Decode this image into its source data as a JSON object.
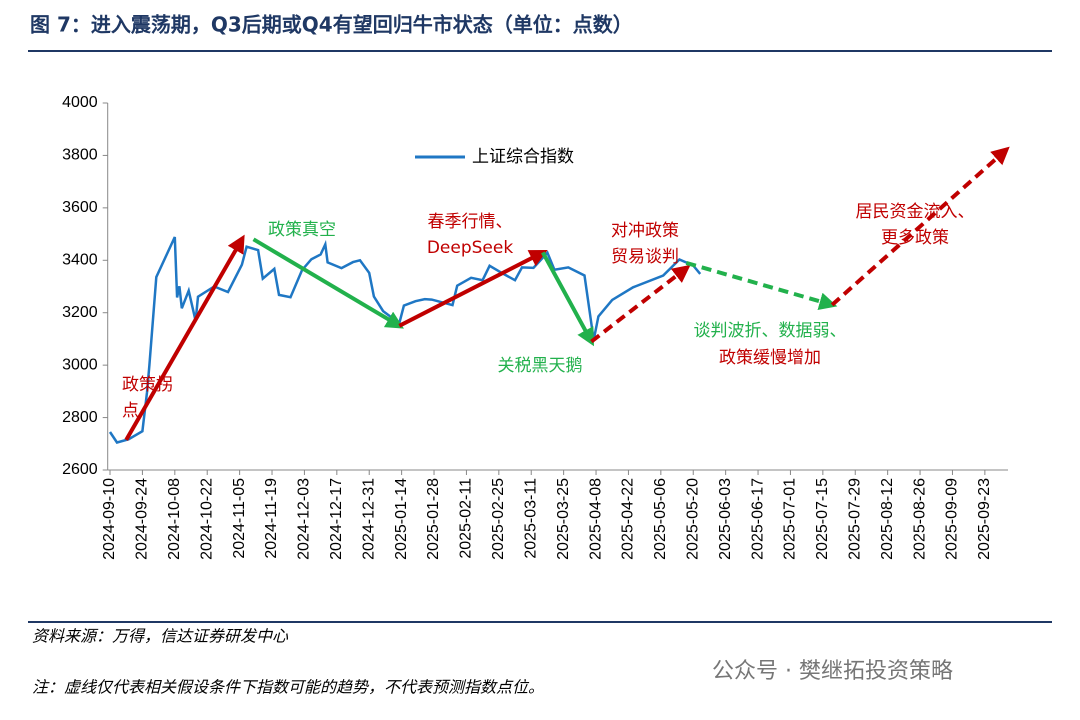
{
  "header": {
    "title": "图 7：进入震荡期，Q3后期或Q4有望回归牛市状态（单位：点数）"
  },
  "chart_data": {
    "type": "line",
    "series": [
      {
        "name": "上证综合指数",
        "color": "#1f77c4",
        "x": [
          "2024-09-10",
          "2024-09-13",
          "2024-09-18",
          "2024-09-24",
          "2024-09-26",
          "2024-09-27",
          "2024-09-30",
          "2024-10-08",
          "2024-10-09",
          "2024-10-10",
          "2024-10-11",
          "2024-10-14",
          "2024-10-17",
          "2024-10-18",
          "2024-10-25",
          "2024-10-31",
          "2024-11-06",
          "2024-11-08",
          "2024-11-13",
          "2024-11-15",
          "2024-11-20",
          "2024-11-22",
          "2024-11-27",
          "2024-12-02",
          "2024-12-06",
          "2024-12-10",
          "2024-12-12",
          "2024-12-13",
          "2024-12-19",
          "2024-12-24",
          "2024-12-27",
          "2024-12-31",
          "2025-01-02",
          "2025-01-06",
          "2025-01-13",
          "2025-01-15",
          "2025-01-20",
          "2025-01-24",
          "2025-01-27",
          "2025-02-05",
          "2025-02-07",
          "2025-02-13",
          "2025-02-18",
          "2025-02-21",
          "2025-02-27",
          "2025-03-04",
          "2025-03-07",
          "2025-03-12",
          "2025-03-18",
          "2025-03-21",
          "2025-03-27",
          "2025-04-03",
          "2025-04-07",
          "2025-04-09",
          "2025-04-15",
          "2025-04-24",
          "2025-05-07",
          "2025-05-14",
          "2025-05-20",
          "2025-05-23"
        ],
        "values": [
          2745,
          2705,
          2717,
          2748,
          2896,
          3000,
          3336,
          3489,
          3258,
          3301,
          3217,
          3284,
          3169,
          3261,
          3300,
          3279,
          3383,
          3452,
          3439,
          3330,
          3367,
          3268,
          3259,
          3363,
          3404,
          3422,
          3461,
          3392,
          3370,
          3393,
          3400,
          3352,
          3262,
          3206,
          3160,
          3227,
          3244,
          3252,
          3250,
          3229,
          3303,
          3333,
          3324,
          3379,
          3348,
          3324,
          3373,
          3371,
          3429,
          3364,
          3373,
          3342,
          3096,
          3186,
          3249,
          3297,
          3342,
          3403,
          3380,
          3348
        ]
      }
    ],
    "arrows": [
      {
        "x": [
          "2024-09-17",
          "2024-11-06"
        ],
        "y": [
          2715,
          3480
        ],
        "color": "#c00000",
        "dashed": false
      },
      {
        "x": [
          "2024-11-11",
          "2025-01-13"
        ],
        "y": [
          3480,
          3150
        ],
        "color": "#22b14c",
        "dashed": false
      },
      {
        "x": [
          "2025-01-13",
          "2025-03-16"
        ],
        "y": [
          3150,
          3430
        ],
        "color": "#c00000",
        "dashed": false
      },
      {
        "x": [
          "2025-03-16",
          "2025-04-06"
        ],
        "y": [
          3430,
          3090
        ],
        "color": "#22b14c",
        "dashed": false
      },
      {
        "x": [
          "2025-04-06",
          "2025-05-17"
        ],
        "y": [
          3090,
          3370
        ],
        "color": "#c00000",
        "dashed": true
      },
      {
        "x": [
          "2025-05-17",
          "2025-07-19"
        ],
        "y": [
          3390,
          3230
        ],
        "color": "#22b14c",
        "dashed": true
      },
      {
        "x": [
          "2025-07-19",
          "2025-10-02"
        ],
        "y": [
          3230,
          3820
        ],
        "color": "#c00000",
        "dashed": true
      }
    ],
    "annotations": [
      {
        "lines": [
          "政策拐",
          "点"
        ],
        "color": "#c00000"
      },
      {
        "lines": [
          "政策真空"
        ],
        "color": "#22b14c"
      },
      {
        "lines": [
          "春季行情、",
          "DeepSeek"
        ],
        "color": "#c00000"
      },
      {
        "lines": [
          "关税黑天鹅"
        ],
        "color": "#22b14c"
      },
      {
        "lines": [
          "对冲政策",
          "贸易谈判"
        ],
        "color": "#c00000"
      },
      {
        "lines": [
          "谈判波折、数据弱、"
        ],
        "color": "#22b14c"
      },
      {
        "lines": [
          "政策缓慢增加"
        ],
        "color": "#c00000"
      },
      {
        "lines": [
          "居民资金流入、",
          "更多政策"
        ],
        "color": "#c00000"
      }
    ],
    "xlim": [
      "2024-09-09",
      "2025-10-03"
    ],
    "xticks": [
      "2024-09-10",
      "2024-09-24",
      "2024-10-08",
      "2024-10-22",
      "2024-11-05",
      "2024-11-19",
      "2024-12-03",
      "2024-12-17",
      "2024-12-31",
      "2025-01-14",
      "2025-01-28",
      "2025-02-11",
      "2025-02-25",
      "2025-03-11",
      "2025-03-25",
      "2025-04-08",
      "2025-04-22",
      "2025-05-06",
      "2025-05-20",
      "2025-06-03",
      "2025-06-17",
      "2025-07-01",
      "2025-07-15",
      "2025-07-29",
      "2025-08-12",
      "2025-08-26",
      "2025-09-09",
      "2025-09-23"
    ],
    "ylim": [
      2600,
      4000
    ],
    "yticks": [
      2600,
      2800,
      3000,
      3200,
      3400,
      3600,
      3800,
      4000
    ]
  },
  "footer": {
    "source": "资料来源：万得，信达证券研发中心",
    "note": "注：虚线仅代表相关假设条件下指数可能的趋势，不代表预测指数点位。",
    "watermark": "公众号 · 樊继拓投资策略"
  }
}
